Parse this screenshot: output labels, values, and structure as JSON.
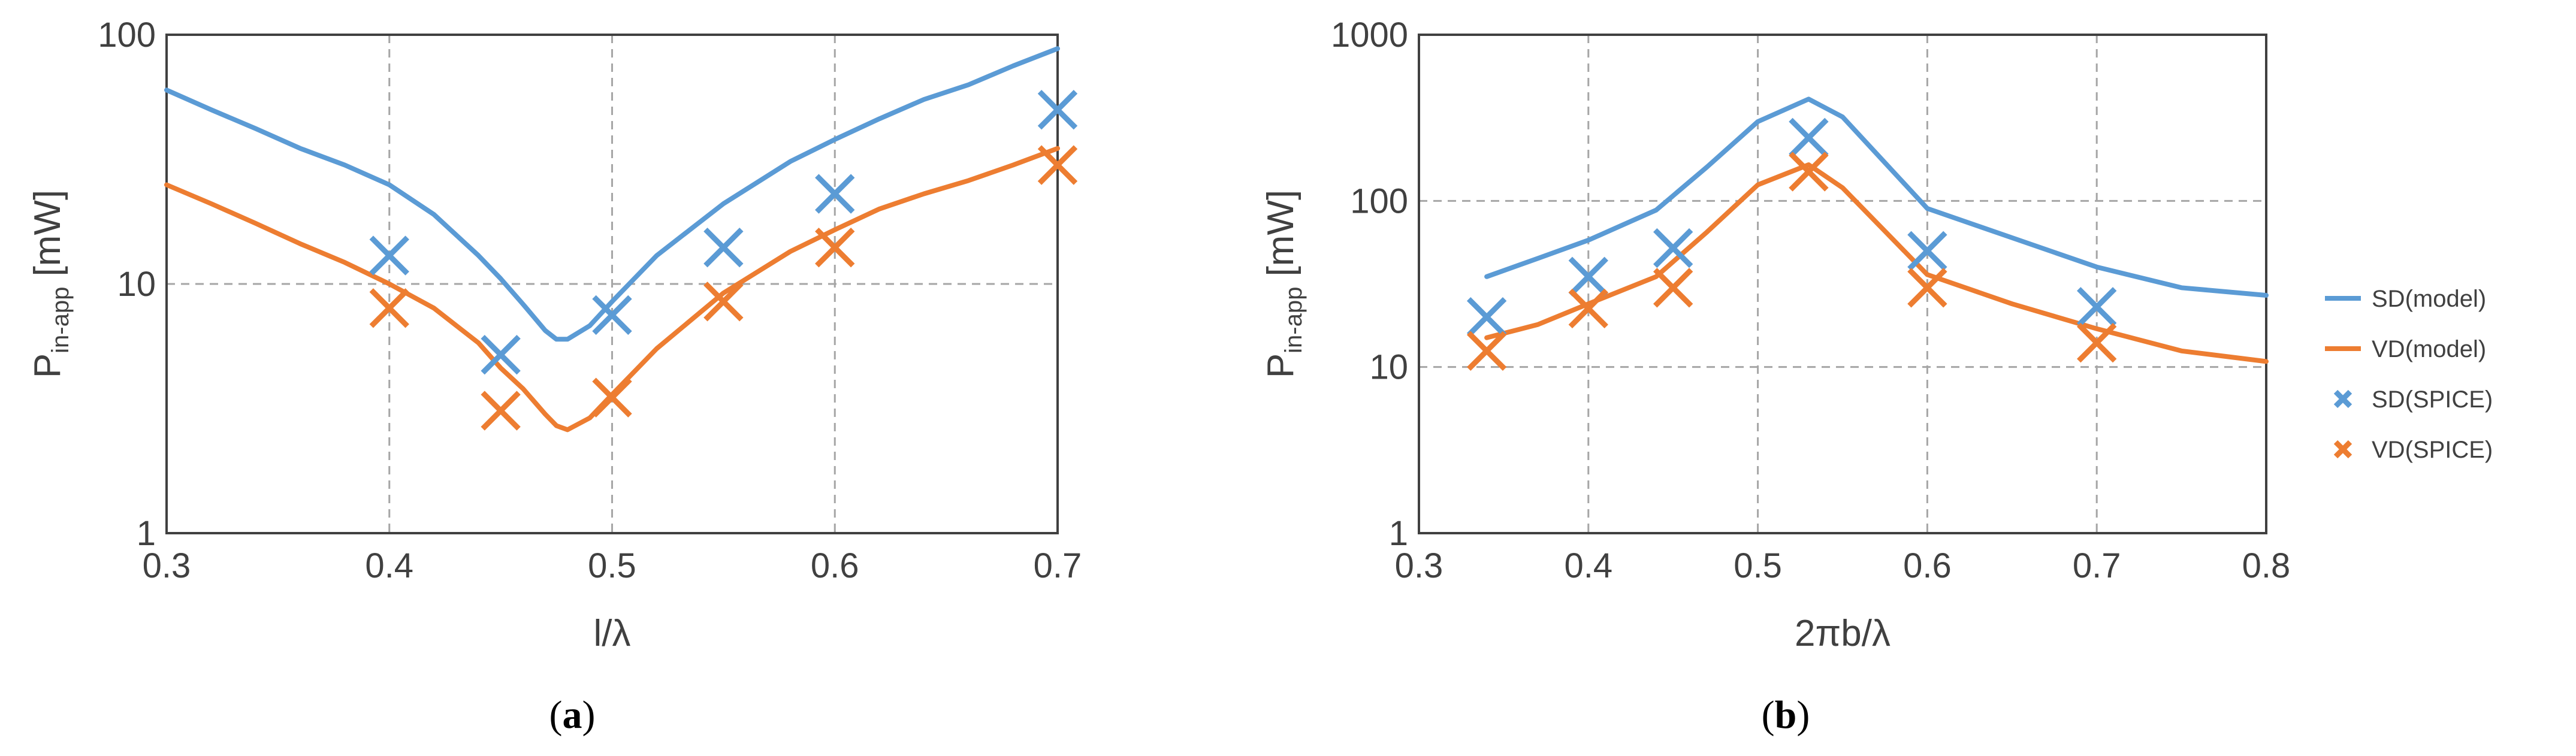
{
  "colors": {
    "sd": "#5b9bd5",
    "vd": "#ed7d31",
    "text": "#404040",
    "grid": "#a6a6a6"
  },
  "chart_data": [
    {
      "type": "line",
      "caption": "a",
      "xlabel": "l/λ",
      "ylabel_main": "P",
      "ylabel_sub": "in-app",
      "ylabel_unit": " [mW]",
      "yscale": "log",
      "xlim": [
        0.3,
        0.7
      ],
      "ylim": [
        1,
        100
      ],
      "xticks": [
        0.3,
        0.4,
        0.5,
        0.6,
        0.7
      ],
      "xtick_labels": [
        "0.3",
        "0.4",
        "0.5",
        "0.6",
        "0.7"
      ],
      "yticks": [
        1,
        10,
        100
      ],
      "ytick_labels": [
        "1",
        "10",
        "100"
      ],
      "grid": true,
      "series": [
        {
          "name": "SD(model)",
          "kind": "line",
          "color": "#5b9bd5",
          "x": [
            0.3,
            0.32,
            0.34,
            0.36,
            0.38,
            0.4,
            0.42,
            0.44,
            0.45,
            0.46,
            0.47,
            0.475,
            0.48,
            0.49,
            0.5,
            0.52,
            0.55,
            0.58,
            0.6,
            0.62,
            0.64,
            0.66,
            0.68,
            0.7
          ],
          "y": [
            60,
            50,
            42,
            35,
            30,
            25,
            19,
            13,
            10.5,
            8.3,
            6.5,
            6.0,
            6.0,
            6.8,
            8.5,
            13,
            21,
            31,
            38,
            46,
            55,
            63,
            75,
            88
          ]
        },
        {
          "name": "VD(model)",
          "kind": "line",
          "color": "#ed7d31",
          "x": [
            0.3,
            0.32,
            0.34,
            0.36,
            0.38,
            0.4,
            0.42,
            0.44,
            0.45,
            0.46,
            0.47,
            0.475,
            0.48,
            0.49,
            0.5,
            0.52,
            0.55,
            0.58,
            0.6,
            0.62,
            0.64,
            0.66,
            0.68,
            0.7
          ],
          "y": [
            25,
            21,
            17.5,
            14.5,
            12.2,
            10,
            8,
            5.8,
            4.6,
            3.8,
            3.0,
            2.7,
            2.6,
            2.9,
            3.6,
            5.5,
            9.2,
            13.5,
            16.5,
            20,
            23,
            26,
            30,
            35
          ]
        },
        {
          "name": "SD(SPICE)",
          "kind": "marker",
          "color": "#5b9bd5",
          "x": [
            0.4,
            0.45,
            0.5,
            0.55,
            0.6,
            0.7
          ],
          "y": [
            13,
            5.2,
            7.5,
            14,
            23,
            50
          ]
        },
        {
          "name": "VD(SPICE)",
          "kind": "marker",
          "color": "#ed7d31",
          "x": [
            0.4,
            0.45,
            0.5,
            0.55,
            0.6,
            0.7
          ],
          "y": [
            8,
            3.1,
            3.5,
            8.5,
            14,
            30
          ]
        }
      ]
    },
    {
      "type": "line",
      "caption": "b",
      "xlabel": "2πb/λ",
      "ylabel_main": "P",
      "ylabel_sub": "in-app",
      "ylabel_unit": " [mW]",
      "yscale": "log",
      "xlim": [
        0.3,
        0.8
      ],
      "ylim": [
        1,
        1000
      ],
      "xticks": [
        0.3,
        0.4,
        0.5,
        0.6,
        0.7,
        0.8
      ],
      "xtick_labels": [
        "0.3",
        "0.4",
        "0.5",
        "0.6",
        "0.7",
        "0.8"
      ],
      "yticks": [
        1,
        10,
        100,
        1000
      ],
      "ytick_labels": [
        "1",
        "10",
        "100",
        "1000"
      ],
      "grid": true,
      "series": [
        {
          "name": "SD(model)",
          "kind": "line",
          "color": "#5b9bd5",
          "x": [
            0.34,
            0.37,
            0.4,
            0.44,
            0.47,
            0.5,
            0.53,
            0.55,
            0.6,
            0.65,
            0.7,
            0.75,
            0.8
          ],
          "y": [
            35,
            45,
            58,
            88,
            160,
            300,
            410,
            320,
            90,
            60,
            40,
            30,
            27
          ]
        },
        {
          "name": "VD(model)",
          "kind": "line",
          "color": "#ed7d31",
          "x": [
            0.34,
            0.37,
            0.4,
            0.44,
            0.47,
            0.5,
            0.53,
            0.55,
            0.6,
            0.65,
            0.7,
            0.75,
            0.8
          ],
          "y": [
            15,
            18,
            24,
            35,
            65,
            125,
            165,
            120,
            36,
            24,
            17,
            12.5,
            10.8
          ]
        },
        {
          "name": "SD(SPICE)",
          "kind": "marker",
          "color": "#5b9bd5",
          "x": [
            0.34,
            0.4,
            0.45,
            0.53,
            0.6,
            0.7
          ],
          "y": [
            20,
            35,
            52,
            240,
            50,
            23
          ]
        },
        {
          "name": "VD(SPICE)",
          "kind": "marker",
          "color": "#ed7d31",
          "x": [
            0.34,
            0.4,
            0.45,
            0.53,
            0.6,
            0.7
          ],
          "y": [
            12.5,
            22.5,
            30,
            150,
            30,
            14
          ]
        }
      ]
    }
  ],
  "legend": {
    "position": "right",
    "entries": [
      {
        "label": "SD(model)",
        "kind": "line",
        "color": "#5b9bd5"
      },
      {
        "label": "VD(model)",
        "kind": "line",
        "color": "#ed7d31"
      },
      {
        "label": "SD(SPICE)",
        "kind": "marker",
        "color": "#5b9bd5"
      },
      {
        "label": "VD(SPICE)",
        "kind": "marker",
        "color": "#ed7d31"
      }
    ]
  }
}
